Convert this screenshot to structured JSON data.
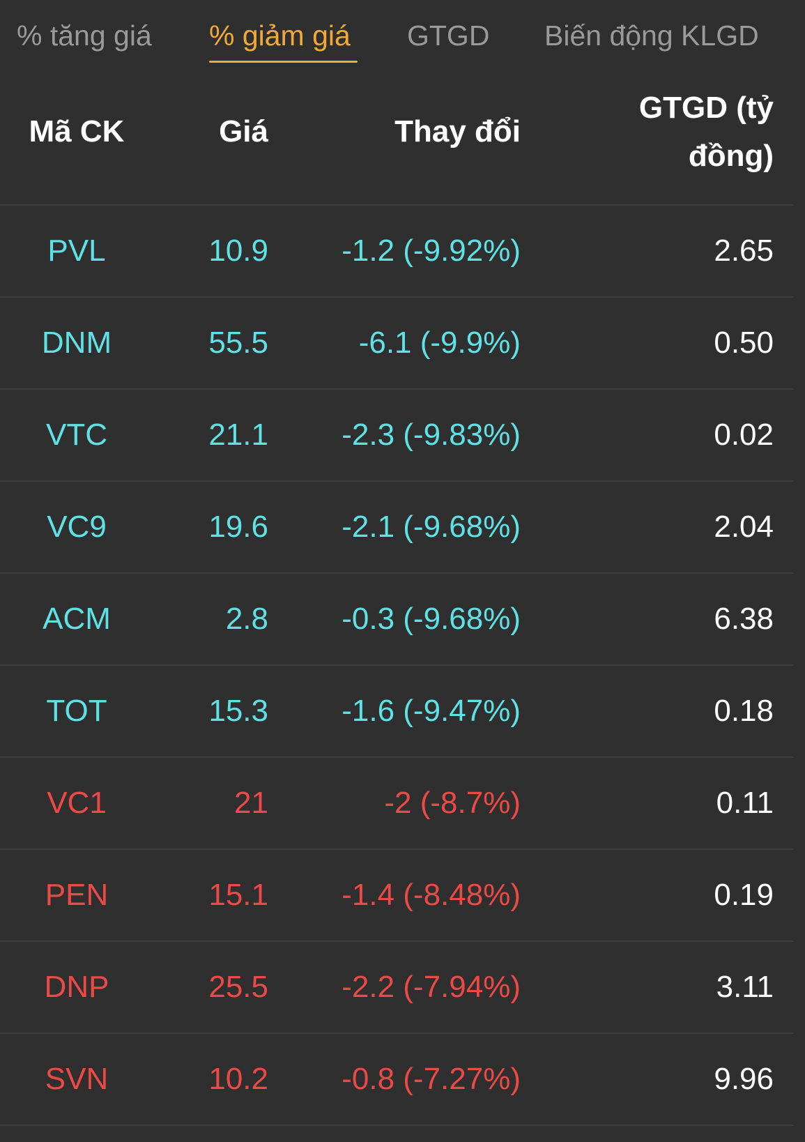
{
  "tabs": [
    {
      "label": "% tăng giá",
      "active": false
    },
    {
      "label": "% giảm giá",
      "active": true
    },
    {
      "label": "GTGD",
      "active": false
    },
    {
      "label": "Biến động KLGD",
      "active": false
    }
  ],
  "colors": {
    "background": "#2f2f2f",
    "active_tab": "#f1a93a",
    "inactive_tab": "#9a9a9a",
    "floor_cyan": "#5ee2e6",
    "down_red": "#ec4a46",
    "divider": "#3e3e3e"
  },
  "table": {
    "headers": {
      "code": "Mã CK",
      "price": "Giá",
      "change": "Thay đổi",
      "value_line1": "GTGD (tỷ",
      "value_line2": "đồng)"
    },
    "rows": [
      {
        "code": "PVL",
        "price": "10.9",
        "change": "-1.2 (-9.92%)",
        "value": "2.65",
        "status": "floor"
      },
      {
        "code": "DNM",
        "price": "55.5",
        "change": "-6.1 (-9.9%)",
        "value": "0.50",
        "status": "floor"
      },
      {
        "code": "VTC",
        "price": "21.1",
        "change": "-2.3 (-9.83%)",
        "value": "0.02",
        "status": "floor"
      },
      {
        "code": "VC9",
        "price": "19.6",
        "change": "-2.1 (-9.68%)",
        "value": "2.04",
        "status": "floor"
      },
      {
        "code": "ACM",
        "price": "2.8",
        "change": "-0.3 (-9.68%)",
        "value": "6.38",
        "status": "floor"
      },
      {
        "code": "TOT",
        "price": "15.3",
        "change": "-1.6 (-9.47%)",
        "value": "0.18",
        "status": "floor"
      },
      {
        "code": "VC1",
        "price": "21",
        "change": "-2 (-8.7%)",
        "value": "0.11",
        "status": "down"
      },
      {
        "code": "PEN",
        "price": "15.1",
        "change": "-1.4 (-8.48%)",
        "value": "0.19",
        "status": "down"
      },
      {
        "code": "DNP",
        "price": "25.5",
        "change": "-2.2 (-7.94%)",
        "value": "3.11",
        "status": "down"
      },
      {
        "code": "SVN",
        "price": "10.2",
        "change": "-0.8 (-7.27%)",
        "value": "9.96",
        "status": "down"
      }
    ]
  }
}
